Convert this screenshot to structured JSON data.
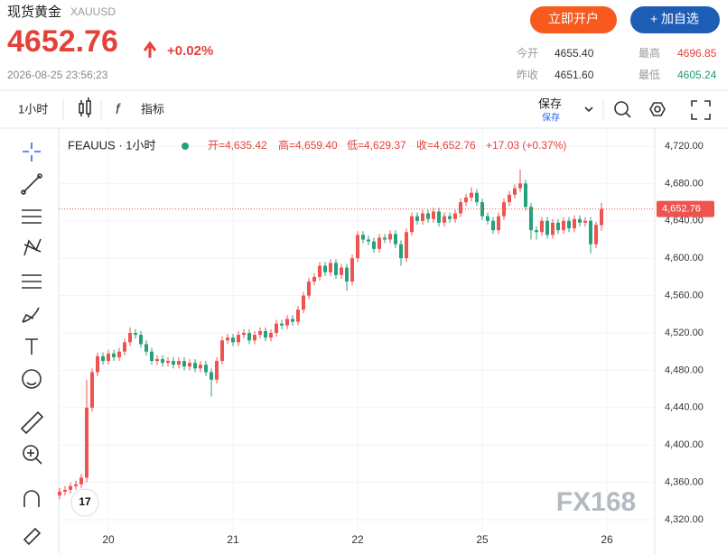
{
  "header": {
    "name": "现货黄金",
    "symbol": "XAUUSD",
    "price": "4652.76",
    "change": "+0.02%",
    "time": "2026-08-25 23:56:23",
    "open_account": "立即开户",
    "add_watch": "+ 加自选",
    "stats": [
      {
        "label": "今开",
        "value": "4655.40"
      },
      {
        "label": "最高",
        "value": "4696.85"
      },
      {
        "label": "昨收",
        "value": "4651.60"
      },
      {
        "label": "最低",
        "value": "4605.24"
      }
    ]
  },
  "toolbar": {
    "interval": "1小时",
    "indicators": "指标",
    "save": "保存",
    "save_sub": "保存"
  },
  "watermark": "FX168",
  "chart_data": {
    "type": "candlestick",
    "title": "FEAUUS · 1小时",
    "readout": [
      "开=4,635.42",
      "高=4,659.40",
      "低=4,629.37",
      "收=4,652.76",
      "+17.03 (+0.37%)"
    ],
    "up_color": "#ef5350",
    "down_color": "#26a17b",
    "grid": true,
    "categories": [
      null,
      null,
      null,
      null,
      null,
      null,
      null,
      null,
      null,
      "20",
      null,
      null,
      null,
      null,
      null,
      null,
      null,
      null,
      null,
      null,
      null,
      null,
      null,
      null,
      null,
      null,
      null,
      null,
      null,
      null,
      null,
      null,
      "21",
      null,
      null,
      null,
      null,
      null,
      null,
      null,
      null,
      null,
      null,
      null,
      null,
      null,
      null,
      null,
      null,
      null,
      null,
      null,
      null,
      null,
      null,
      "22",
      null,
      null,
      null,
      null,
      null,
      null,
      null,
      null,
      null,
      null,
      null,
      null,
      null,
      null,
      null,
      null,
      null,
      null,
      null,
      null,
      null,
      null,
      "25",
      null,
      null,
      null,
      null,
      null,
      null,
      null,
      null,
      null,
      null,
      null,
      null,
      null,
      null,
      null,
      null,
      null,
      null,
      null,
      null,
      null,
      null,
      "26"
    ],
    "open": [
      4346,
      4350,
      4352,
      4356,
      4358,
      4365,
      4440,
      4478,
      4495,
      4490,
      4498,
      4494,
      4500,
      4510,
      4520,
      4518,
      4508,
      4500,
      4490,
      4492,
      4488,
      4490,
      4486,
      4490,
      4484,
      4488,
      4482,
      4486,
      4478,
      4470,
      4490,
      4512,
      4515,
      4510,
      4518,
      4520,
      4512,
      4518,
      4522,
      4515,
      4520,
      4530,
      4528,
      4535,
      4532,
      4545,
      4560,
      4575,
      4580,
      4592,
      4585,
      4595,
      4582,
      4590,
      4575,
      4600,
      4625,
      4620,
      4618,
      4610,
      4622,
      4620,
      4626,
      4615,
      4600,
      4628,
      4645,
      4640,
      4648,
      4642,
      4650,
      4638,
      4645,
      4642,
      4648,
      4660,
      4665,
      4670,
      4660,
      4645,
      4640,
      4630,
      4645,
      4660,
      4668,
      4675,
      4680,
      4655,
      4630,
      4628,
      4640,
      4625,
      4638,
      4630,
      4640,
      4632,
      4642,
      4638,
      4640,
      4615,
      4635.42,
      null
    ],
    "high": [
      4354,
      4356,
      4360,
      4362,
      4369,
      4470,
      4482,
      4499,
      4499,
      4502,
      4502,
      4504,
      4514,
      4526,
      4524,
      4522,
      4512,
      4504,
      4496,
      4496,
      4494,
      4494,
      4494,
      4494,
      4492,
      4492,
      4490,
      4490,
      4482,
      4494,
      4516,
      4519,
      4519,
      4522,
      4524,
      4524,
      4522,
      4526,
      4526,
      4524,
      4534,
      4534,
      4539,
      4539,
      4549,
      4564,
      4579,
      4584,
      4596,
      4596,
      4599,
      4599,
      4594,
      4594,
      4604,
      4629,
      4629,
      4624,
      4622,
      4626,
      4626,
      4630,
      4630,
      4619,
      4632,
      4649,
      4649,
      4652,
      4652,
      4654,
      4654,
      4649,
      4649,
      4652,
      4664,
      4669,
      4676,
      4674,
      4664,
      4649,
      4644,
      4649,
      4664,
      4672,
      4679,
      4695,
      4684,
      4659,
      4634,
      4644,
      4644,
      4642,
      4642,
      4644,
      4644,
      4646,
      4646,
      4644,
      4644,
      4639,
      4659.4,
      null
    ],
    "low": [
      4342,
      4346,
      4348,
      4352,
      4354,
      4360,
      4436,
      4474,
      4486,
      4486,
      4490,
      4490,
      4496,
      4506,
      4514,
      4504,
      4496,
      4486,
      4486,
      4484,
      4484,
      4482,
      4482,
      4480,
      4480,
      4478,
      4478,
      4474,
      4452,
      4466,
      4486,
      4508,
      4506,
      4506,
      4514,
      4508,
      4508,
      4514,
      4511,
      4511,
      4516,
      4524,
      4524,
      4528,
      4528,
      4541,
      4556,
      4571,
      4576,
      4581,
      4581,
      4578,
      4578,
      4565,
      4571,
      4596,
      4616,
      4614,
      4606,
      4606,
      4616,
      4616,
      4611,
      4592,
      4596,
      4624,
      4636,
      4636,
      4638,
      4638,
      4634,
      4634,
      4638,
      4638,
      4644,
      4656,
      4661,
      4656,
      4641,
      4636,
      4626,
      4626,
      4641,
      4656,
      4664,
      4671,
      4651,
      4620,
      4620,
      4624,
      4621,
      4621,
      4626,
      4626,
      4628,
      4628,
      4634,
      4634,
      4605,
      4611,
      4629.37,
      null
    ],
    "close": [
      4350,
      4352,
      4356,
      4358,
      4365,
      4440,
      4478,
      4495,
      4490,
      4498,
      4494,
      4500,
      4510,
      4520,
      4518,
      4508,
      4500,
      4490,
      4492,
      4488,
      4490,
      4486,
      4490,
      4484,
      4488,
      4482,
      4486,
      4478,
      4470,
      4490,
      4512,
      4515,
      4510,
      4518,
      4520,
      4512,
      4518,
      4522,
      4515,
      4520,
      4530,
      4528,
      4535,
      4532,
      4545,
      4560,
      4575,
      4580,
      4592,
      4585,
      4595,
      4582,
      4590,
      4575,
      4600,
      4625,
      4620,
      4618,
      4610,
      4622,
      4620,
      4626,
      4615,
      4600,
      4628,
      4645,
      4640,
      4648,
      4642,
      4650,
      4638,
      4645,
      4642,
      4648,
      4660,
      4665,
      4670,
      4660,
      4645,
      4640,
      4630,
      4645,
      4660,
      4668,
      4675,
      4680,
      4655,
      4630,
      4628,
      4640,
      4625,
      4638,
      4630,
      4640,
      4632,
      4642,
      4638,
      4640,
      4615,
      4635.73,
      4652.76,
      null
    ],
    "last_price": {
      "value": 4652.76,
      "label": "4,652.76"
    },
    "ylim": [
      4320,
      4720
    ],
    "yticks": [
      {
        "value": 4320,
        "label": "4,320.00"
      },
      {
        "value": 4360,
        "label": "4,360.00"
      },
      {
        "value": 4400,
        "label": "4,400.00"
      },
      {
        "value": 4440,
        "label": "4,440.00"
      },
      {
        "value": 4480,
        "label": "4,480.00"
      },
      {
        "value": 4520,
        "label": "4,520.00"
      },
      {
        "value": 4560,
        "label": "4,560.00"
      },
      {
        "value": 4600,
        "label": "4,600.00"
      },
      {
        "value": 4640,
        "label": "4,640.00"
      },
      {
        "value": 4680,
        "label": "4,680.00"
      },
      {
        "value": 4720,
        "label": "4,720.00"
      }
    ]
  }
}
